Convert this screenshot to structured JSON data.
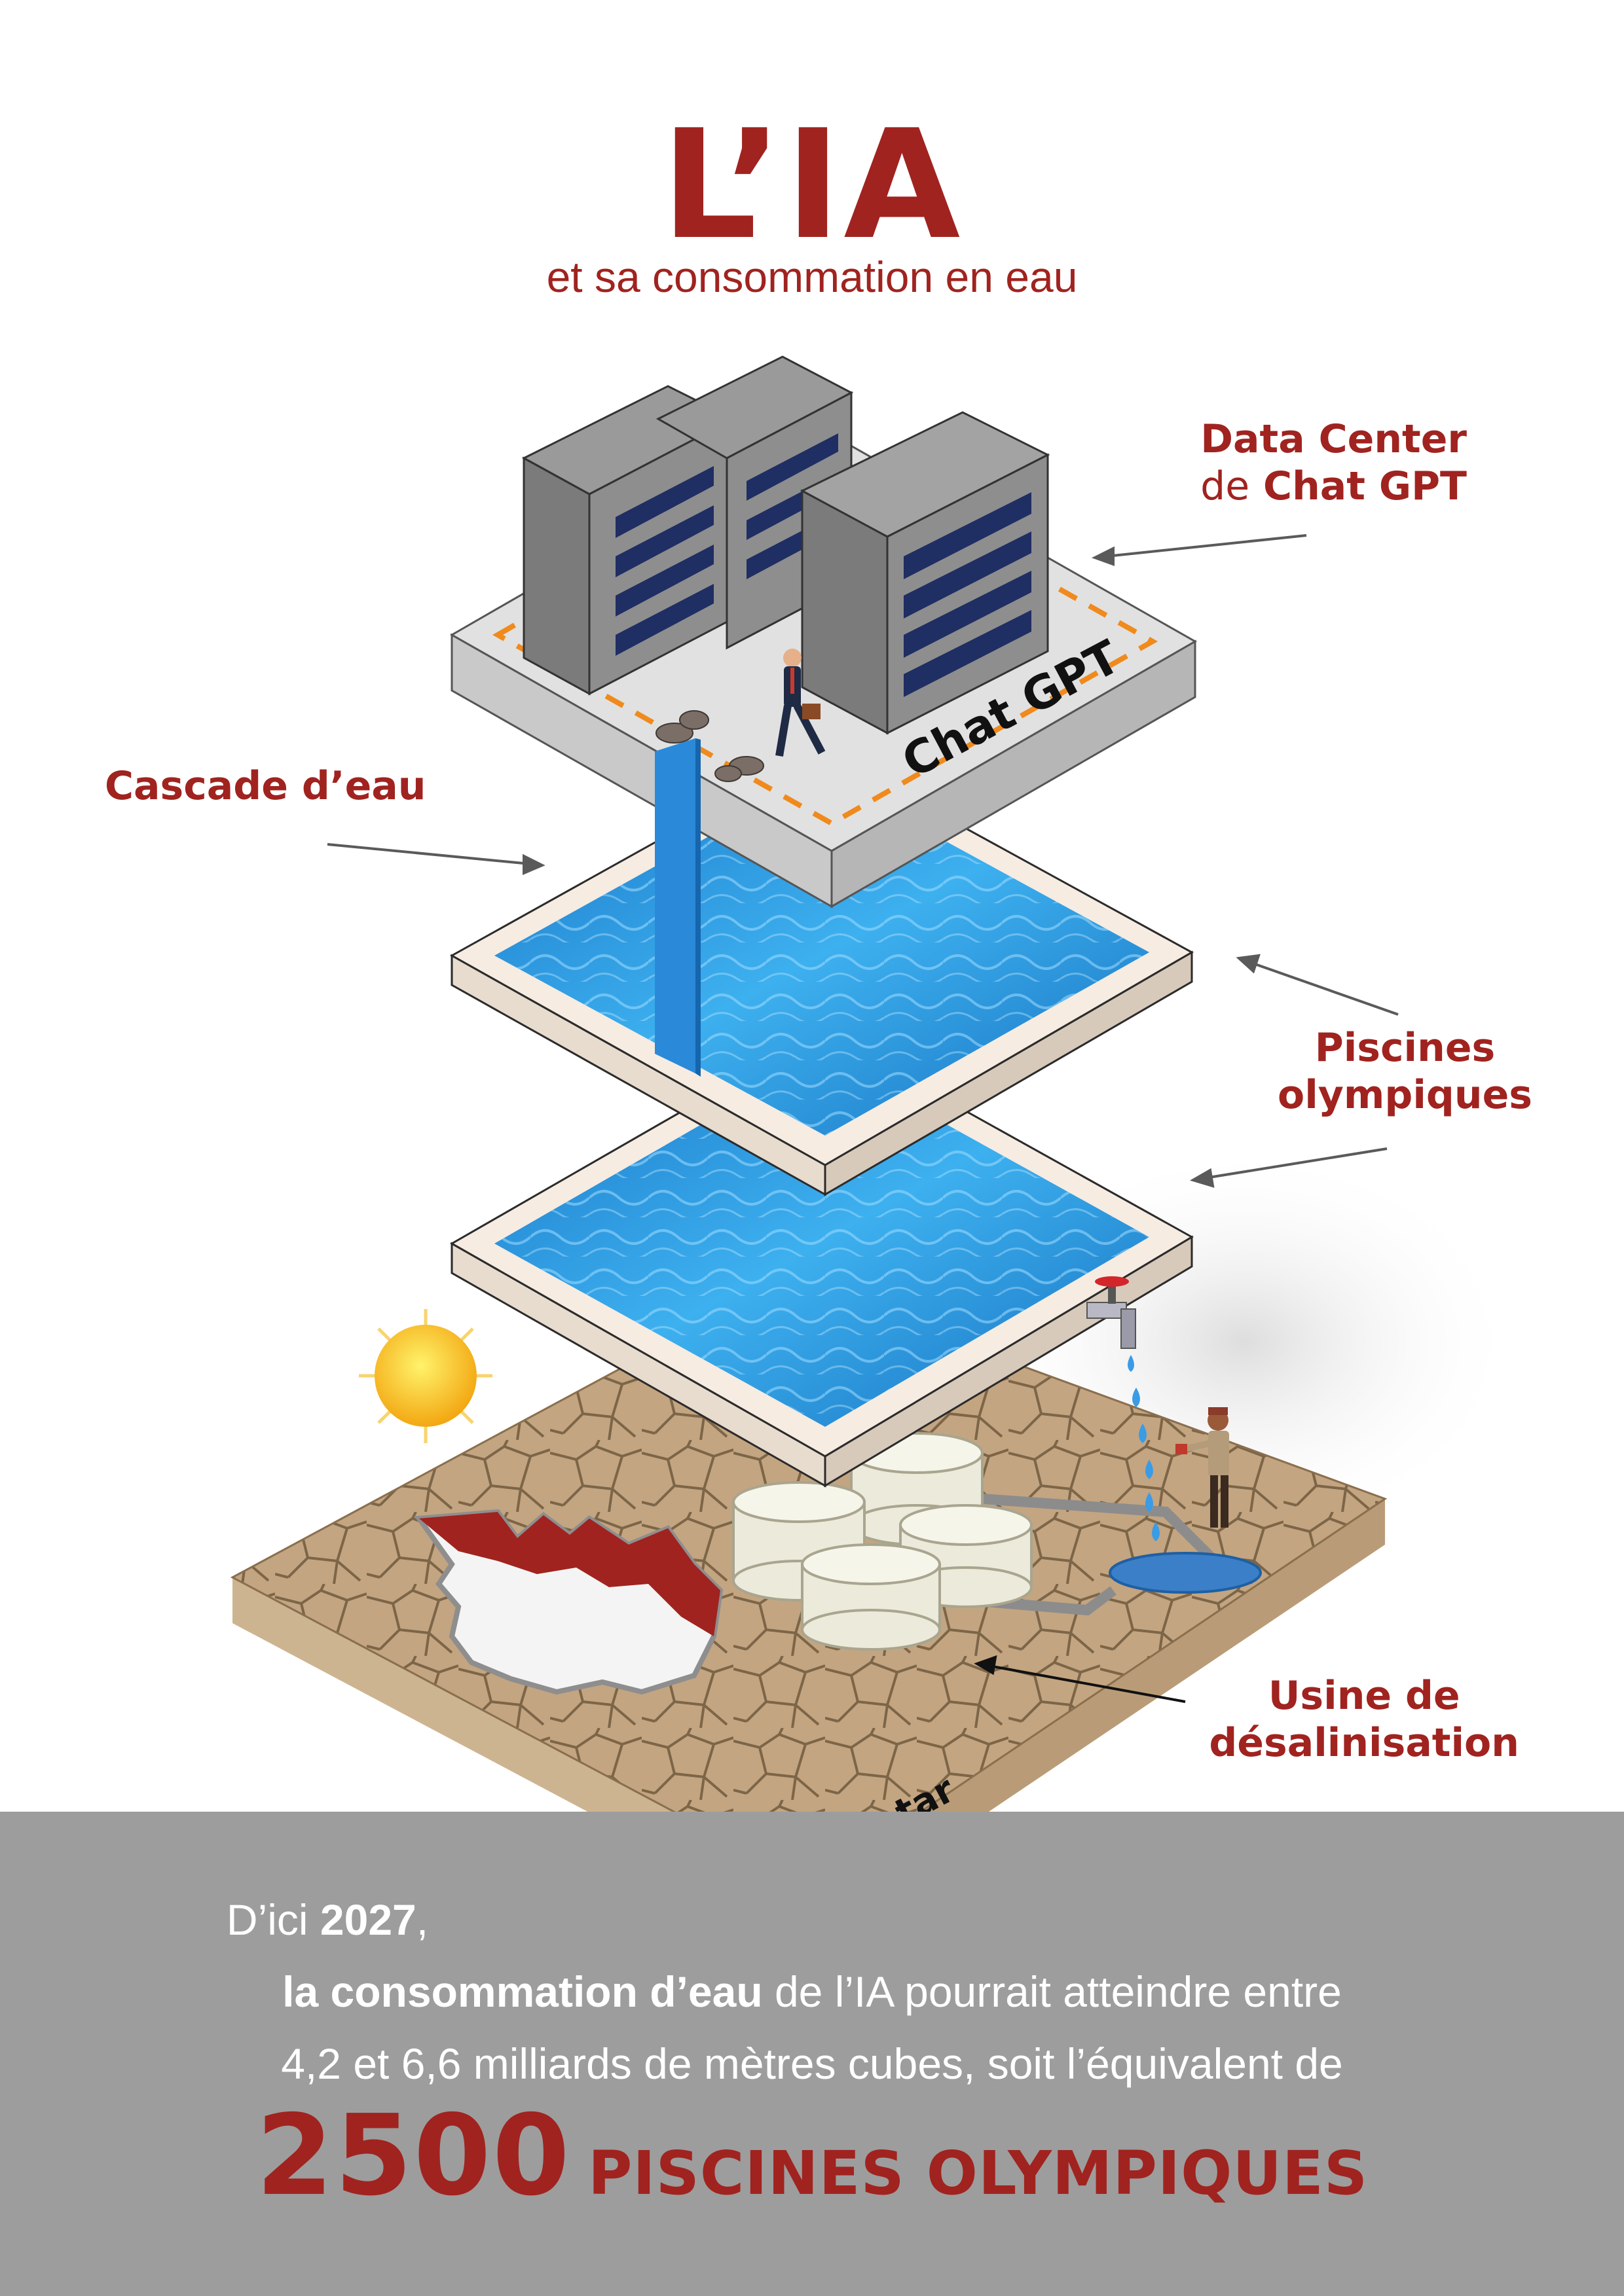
{
  "title": "L’IA",
  "subtitle": "et sa consommation en eau",
  "labels": {
    "data_center_line1": "Data Center",
    "data_center_de": "de",
    "data_center_name": "Chat GPT",
    "cascade": "Cascade d’eau",
    "pools_line1": "Piscines",
    "pools_line2": "olympiques",
    "desal_line1": "Usine de",
    "desal_line2": "désalinisation"
  },
  "scene": {
    "platform_text": "Chat GPT",
    "ground_text": "Qatar"
  },
  "footer": {
    "line1_prefix": "D’ici ",
    "line1_year": "2027",
    "line1_suffix": ",",
    "line2_bold": "la consommation d’eau",
    "line2_rest": " de l’IA pourrait atteindre entre",
    "line3": "4,2 et 6,6 milliards de mètres cubes, soit l’équivalent de",
    "big_number": "2500",
    "big_text": "PISCINES OLYMPIQUES"
  },
  "colors": {
    "accent": "#a0231f",
    "band": "#9d9d9d",
    "water": "#1e8fd6"
  }
}
